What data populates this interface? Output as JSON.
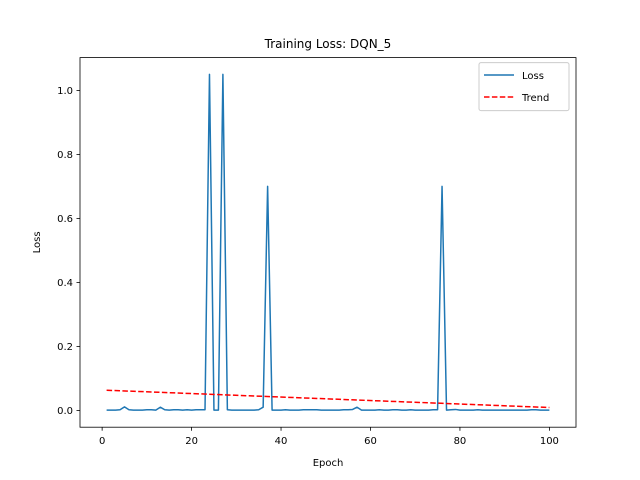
{
  "chart_data": {
    "type": "line",
    "title": "Training Loss: DQN_5",
    "xlabel": "Epoch",
    "ylabel": "Loss",
    "xlim": [
      -4.95,
      105.95
    ],
    "ylim": [
      -0.0525,
      1.1025
    ],
    "xticks": [
      0,
      20,
      40,
      60,
      80,
      100
    ],
    "xtick_labels": [
      "0",
      "20",
      "40",
      "60",
      "80",
      "100"
    ],
    "yticks": [
      0.0,
      0.2,
      0.4,
      0.6,
      0.8,
      1.0
    ],
    "ytick_labels": [
      "0.0",
      "0.2",
      "0.4",
      "0.6",
      "0.8",
      "1.0"
    ],
    "grid": false,
    "legend_position": "top-right",
    "series": [
      {
        "name": "Loss",
        "color": "#1f77b4",
        "style": "solid",
        "x": [
          1,
          2,
          3,
          4,
          5,
          6,
          7,
          8,
          9,
          10,
          11,
          12,
          13,
          14,
          15,
          16,
          17,
          18,
          19,
          20,
          21,
          22,
          23,
          24,
          25,
          26,
          27,
          28,
          29,
          30,
          31,
          32,
          33,
          34,
          35,
          36,
          37,
          38,
          39,
          40,
          41,
          42,
          43,
          44,
          45,
          46,
          47,
          48,
          49,
          50,
          51,
          52,
          53,
          54,
          55,
          56,
          57,
          58,
          59,
          60,
          61,
          62,
          63,
          64,
          65,
          66,
          67,
          68,
          69,
          70,
          71,
          72,
          73,
          74,
          75,
          76,
          77,
          78,
          79,
          80,
          81,
          82,
          83,
          84,
          85,
          86,
          87,
          88,
          89,
          90,
          91,
          92,
          93,
          94,
          95,
          96,
          97,
          98,
          99,
          100
        ],
        "y": [
          0.001,
          0.001,
          0.001,
          0.002,
          0.011,
          0.002,
          0.001,
          0.001,
          0.001,
          0.002,
          0.002,
          0.001,
          0.01,
          0.002,
          0.001,
          0.002,
          0.002,
          0.001,
          0.002,
          0.001,
          0.002,
          0.002,
          0.002,
          1.05,
          0.001,
          0.001,
          1.05,
          0.002,
          0.001,
          0.001,
          0.001,
          0.001,
          0.001,
          0.001,
          0.002,
          0.01,
          0.7,
          0.001,
          0.001,
          0.001,
          0.002,
          0.001,
          0.001,
          0.001,
          0.002,
          0.002,
          0.002,
          0.002,
          0.001,
          0.001,
          0.001,
          0.001,
          0.001,
          0.002,
          0.002,
          0.003,
          0.01,
          0.001,
          0.001,
          0.001,
          0.001,
          0.002,
          0.001,
          0.001,
          0.002,
          0.002,
          0.001,
          0.001,
          0.002,
          0.001,
          0.001,
          0.001,
          0.001,
          0.002,
          0.002,
          0.7,
          0.001,
          0.002,
          0.003,
          0.001,
          0.001,
          0.001,
          0.001,
          0.002,
          0.001,
          0.001,
          0.001,
          0.001,
          0.001,
          0.001,
          0.001,
          0.001,
          0.001,
          0.001,
          0.001,
          0.002,
          0.002,
          0.001,
          0.001,
          0.001
        ]
      },
      {
        "name": "Trend",
        "color": "#ff0000",
        "style": "dashed",
        "x": [
          1,
          100
        ],
        "y": [
          0.063,
          0.009
        ]
      }
    ]
  }
}
